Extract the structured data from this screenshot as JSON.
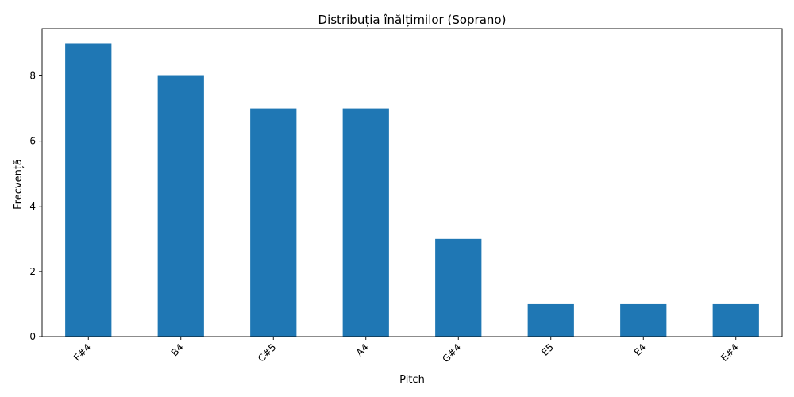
{
  "chart_data": {
    "type": "bar",
    "title": "Distribuția înălțimilor (Soprano)",
    "xlabel": "Pitch",
    "ylabel": "Frecvență",
    "categories": [
      "F#4",
      "B4",
      "C#5",
      "A4",
      "G#4",
      "E5",
      "E4",
      "E#4"
    ],
    "values": [
      9,
      8,
      7,
      7,
      3,
      1,
      1,
      1
    ],
    "ylim": [
      0,
      9.45
    ],
    "yticks": [
      0,
      2,
      4,
      6,
      8
    ],
    "bar_color": "#1f77b4",
    "grid": false,
    "legend": "none"
  }
}
